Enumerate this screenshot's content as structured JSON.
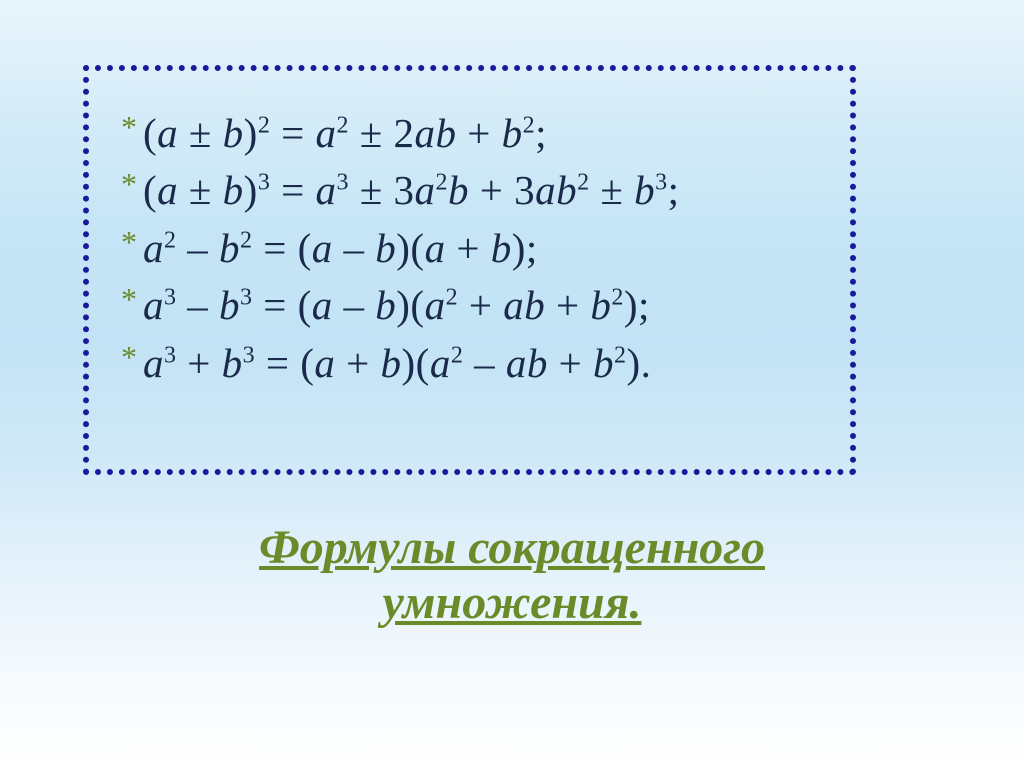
{
  "box": {
    "border_color": "#1a1a9a",
    "bullet_color": "#6a8b2a",
    "text_color": "#1a2a4a",
    "font_family": "Times New Roman",
    "font_style": "italic",
    "font_size_pt": 30,
    "formulas": [
      {
        "type": "identity",
        "plain": "(a ± b)^2 = a^2 ± 2ab + b^2;",
        "html": "<span class='rm'>(</span>a <span class='rm'>±</span> b<span class='rm'>)</span><sup>2</sup> <span class='rm'>=</span> a<sup>2</sup> <span class='rm'>±</span> <span class='rm'>2</span>ab <span class='rm'>+</span> b<sup>2</sup><span class='rm'>;</span>"
      },
      {
        "type": "identity",
        "plain": "(a ± b)^3 = a^3 ± 3a^2 b + 3ab^2 ± b^3;",
        "html": "<span class='rm'>(</span>a <span class='rm'>±</span> b<span class='rm'>)</span><sup>3</sup> <span class='rm'>=</span> a<sup>3</sup> <span class='rm'>±</span> <span class='rm'>3</span>a<sup>2</sup>b <span class='rm'>+</span> <span class='rm'>3</span>ab<sup>2</sup> <span class='rm'>±</span> b<sup>3</sup><span class='rm'>;</span>"
      },
      {
        "type": "identity",
        "plain": "a^2 – b^2 = (a – b)(a + b);",
        "html": "a<sup>2</sup> <span class='rm'>–</span> b<sup>2</sup> <span class='rm'>=</span> <span class='rm'>(</span>a <span class='rm'>–</span> b<span class='rm'>)(</span>a <span class='rm'>+</span> b<span class='rm'>);</span>"
      },
      {
        "type": "identity",
        "plain": "a^3 – b^3 = (a – b)(a^2 + ab + b^2);",
        "html": "a<sup>3</sup> <span class='rm'>–</span> b<sup>3</sup> <span class='rm'>=</span> <span class='rm'>(</span>a <span class='rm'>–</span> b<span class='rm'>)(</span>a<sup>2</sup> <span class='rm'>+</span> ab <span class='rm'>+</span> b<sup>2</sup><span class='rm'>);</span>"
      },
      {
        "type": "identity",
        "plain": "a^3 + b^3 = (a + b)(a^2 – ab + b^2).",
        "html": "a<sup>3</sup> <span class='rm'>+</span> b<sup>3</sup> <span class='rm'>=</span> <span class='rm'>(</span>a <span class='rm'>+</span> b<span class='rm'>)(</span>a<sup>2</sup> <span class='rm'>–</span> ab <span class='rm'>+</span> b<sup>2</sup><span class='rm'>).</span>"
      }
    ]
  },
  "title": {
    "line1": "Формулы сокращенного",
    "line2": "умножения.",
    "color": "#6a8b2a",
    "font_size_pt": 36,
    "font_style": "italic",
    "font_weight": "bold",
    "underline": true
  },
  "background": {
    "gradient_stops": [
      "#e8f4fb",
      "#d5ecf8",
      "#c5e5f6",
      "#c2e3f5",
      "#d0e9f7",
      "#e5f2fb",
      "#f5fafd",
      "#ffffff"
    ]
  }
}
